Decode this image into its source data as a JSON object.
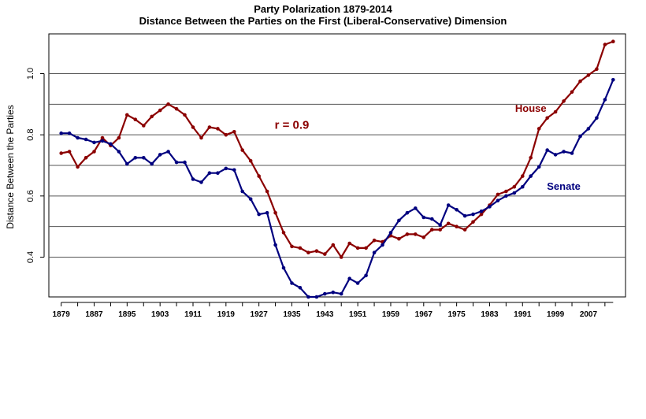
{
  "chart_data": {
    "type": "line",
    "title": "Party Polarization 1879-2014",
    "subtitle": "Distance Between the Parties on the First (Liberal-Conservative) Dimension",
    "xlabel": "",
    "ylabel": "Distance Between the Parties",
    "xlim": [
      1876,
      2016
    ],
    "ylim": [
      0.27,
      1.13
    ],
    "x_ticks": [
      "1879",
      "1887",
      "1895",
      "1903",
      "1911",
      "1919",
      "1927",
      "1935",
      "1943",
      "1951",
      "1959",
      "1967",
      "1975",
      "1983",
      "1991",
      "1999",
      "2007"
    ],
    "y_ticks": [
      "0.4",
      "0.6",
      "0.8",
      "1.0"
    ],
    "gridlines": [
      0.4,
      0.5,
      0.6,
      0.7,
      0.8,
      0.9,
      1.0
    ],
    "x": [
      1879,
      1881,
      1883,
      1885,
      1887,
      1889,
      1891,
      1893,
      1895,
      1897,
      1899,
      1901,
      1903,
      1905,
      1907,
      1909,
      1911,
      1913,
      1915,
      1917,
      1919,
      1921,
      1923,
      1925,
      1927,
      1929,
      1931,
      1933,
      1935,
      1937,
      1939,
      1941,
      1943,
      1945,
      1947,
      1949,
      1951,
      1953,
      1955,
      1957,
      1959,
      1961,
      1963,
      1965,
      1967,
      1969,
      1971,
      1973,
      1975,
      1977,
      1979,
      1981,
      1983,
      1985,
      1987,
      1989,
      1991,
      1993,
      1995,
      1997,
      1999,
      2001,
      2003,
      2005,
      2007,
      2009,
      2011,
      2013
    ],
    "series": [
      {
        "name": "House",
        "color": "#8b0000",
        "values": [
          0.74,
          0.745,
          0.695,
          0.725,
          0.745,
          0.79,
          0.765,
          0.79,
          0.865,
          0.85,
          0.83,
          0.86,
          0.88,
          0.9,
          0.885,
          0.865,
          0.825,
          0.79,
          0.825,
          0.82,
          0.8,
          0.81,
          0.75,
          0.715,
          0.665,
          0.615,
          0.545,
          0.48,
          0.435,
          0.43,
          0.415,
          0.42,
          0.41,
          0.44,
          0.4,
          0.445,
          0.43,
          0.43,
          0.455,
          0.45,
          0.47,
          0.46,
          0.475,
          0.475,
          0.465,
          0.49,
          0.49,
          0.51,
          0.5,
          0.49,
          0.515,
          0.54,
          0.57,
          0.605,
          0.615,
          0.63,
          0.665,
          0.725,
          0.82,
          0.855,
          0.875,
          0.91,
          0.94,
          0.975,
          0.995,
          1.015,
          1.095,
          1.105
        ]
      },
      {
        "name": "Senate",
        "color": "#00007f",
        "values": [
          0.805,
          0.805,
          0.79,
          0.785,
          0.775,
          0.78,
          0.77,
          0.745,
          0.705,
          0.725,
          0.725,
          0.705,
          0.735,
          0.745,
          0.71,
          0.71,
          0.655,
          0.645,
          0.675,
          0.675,
          0.69,
          0.685,
          0.615,
          0.59,
          0.54,
          0.545,
          0.44,
          0.365,
          0.315,
          0.3,
          0.27,
          0.27,
          0.28,
          0.285,
          0.28,
          0.33,
          0.315,
          0.34,
          0.415,
          0.44,
          0.48,
          0.52,
          0.545,
          0.56,
          0.53,
          0.525,
          0.505,
          0.57,
          0.555,
          0.535,
          0.54,
          0.55,
          0.565,
          0.585,
          0.6,
          0.61,
          0.63,
          0.665,
          0.695,
          0.75,
          0.735,
          0.745,
          0.74,
          0.795,
          0.82,
          0.855,
          0.915,
          0.98
        ]
      }
    ],
    "annotations": [
      {
        "text": "r =  0.9",
        "x": 1935,
        "y": 0.82,
        "color": "#8b0000"
      },
      {
        "text": "House",
        "x": 1993,
        "y": 0.875,
        "color": "#8b0000"
      },
      {
        "text": "Senate",
        "x": 2001,
        "y": 0.62,
        "color": "#00007f"
      }
    ]
  }
}
